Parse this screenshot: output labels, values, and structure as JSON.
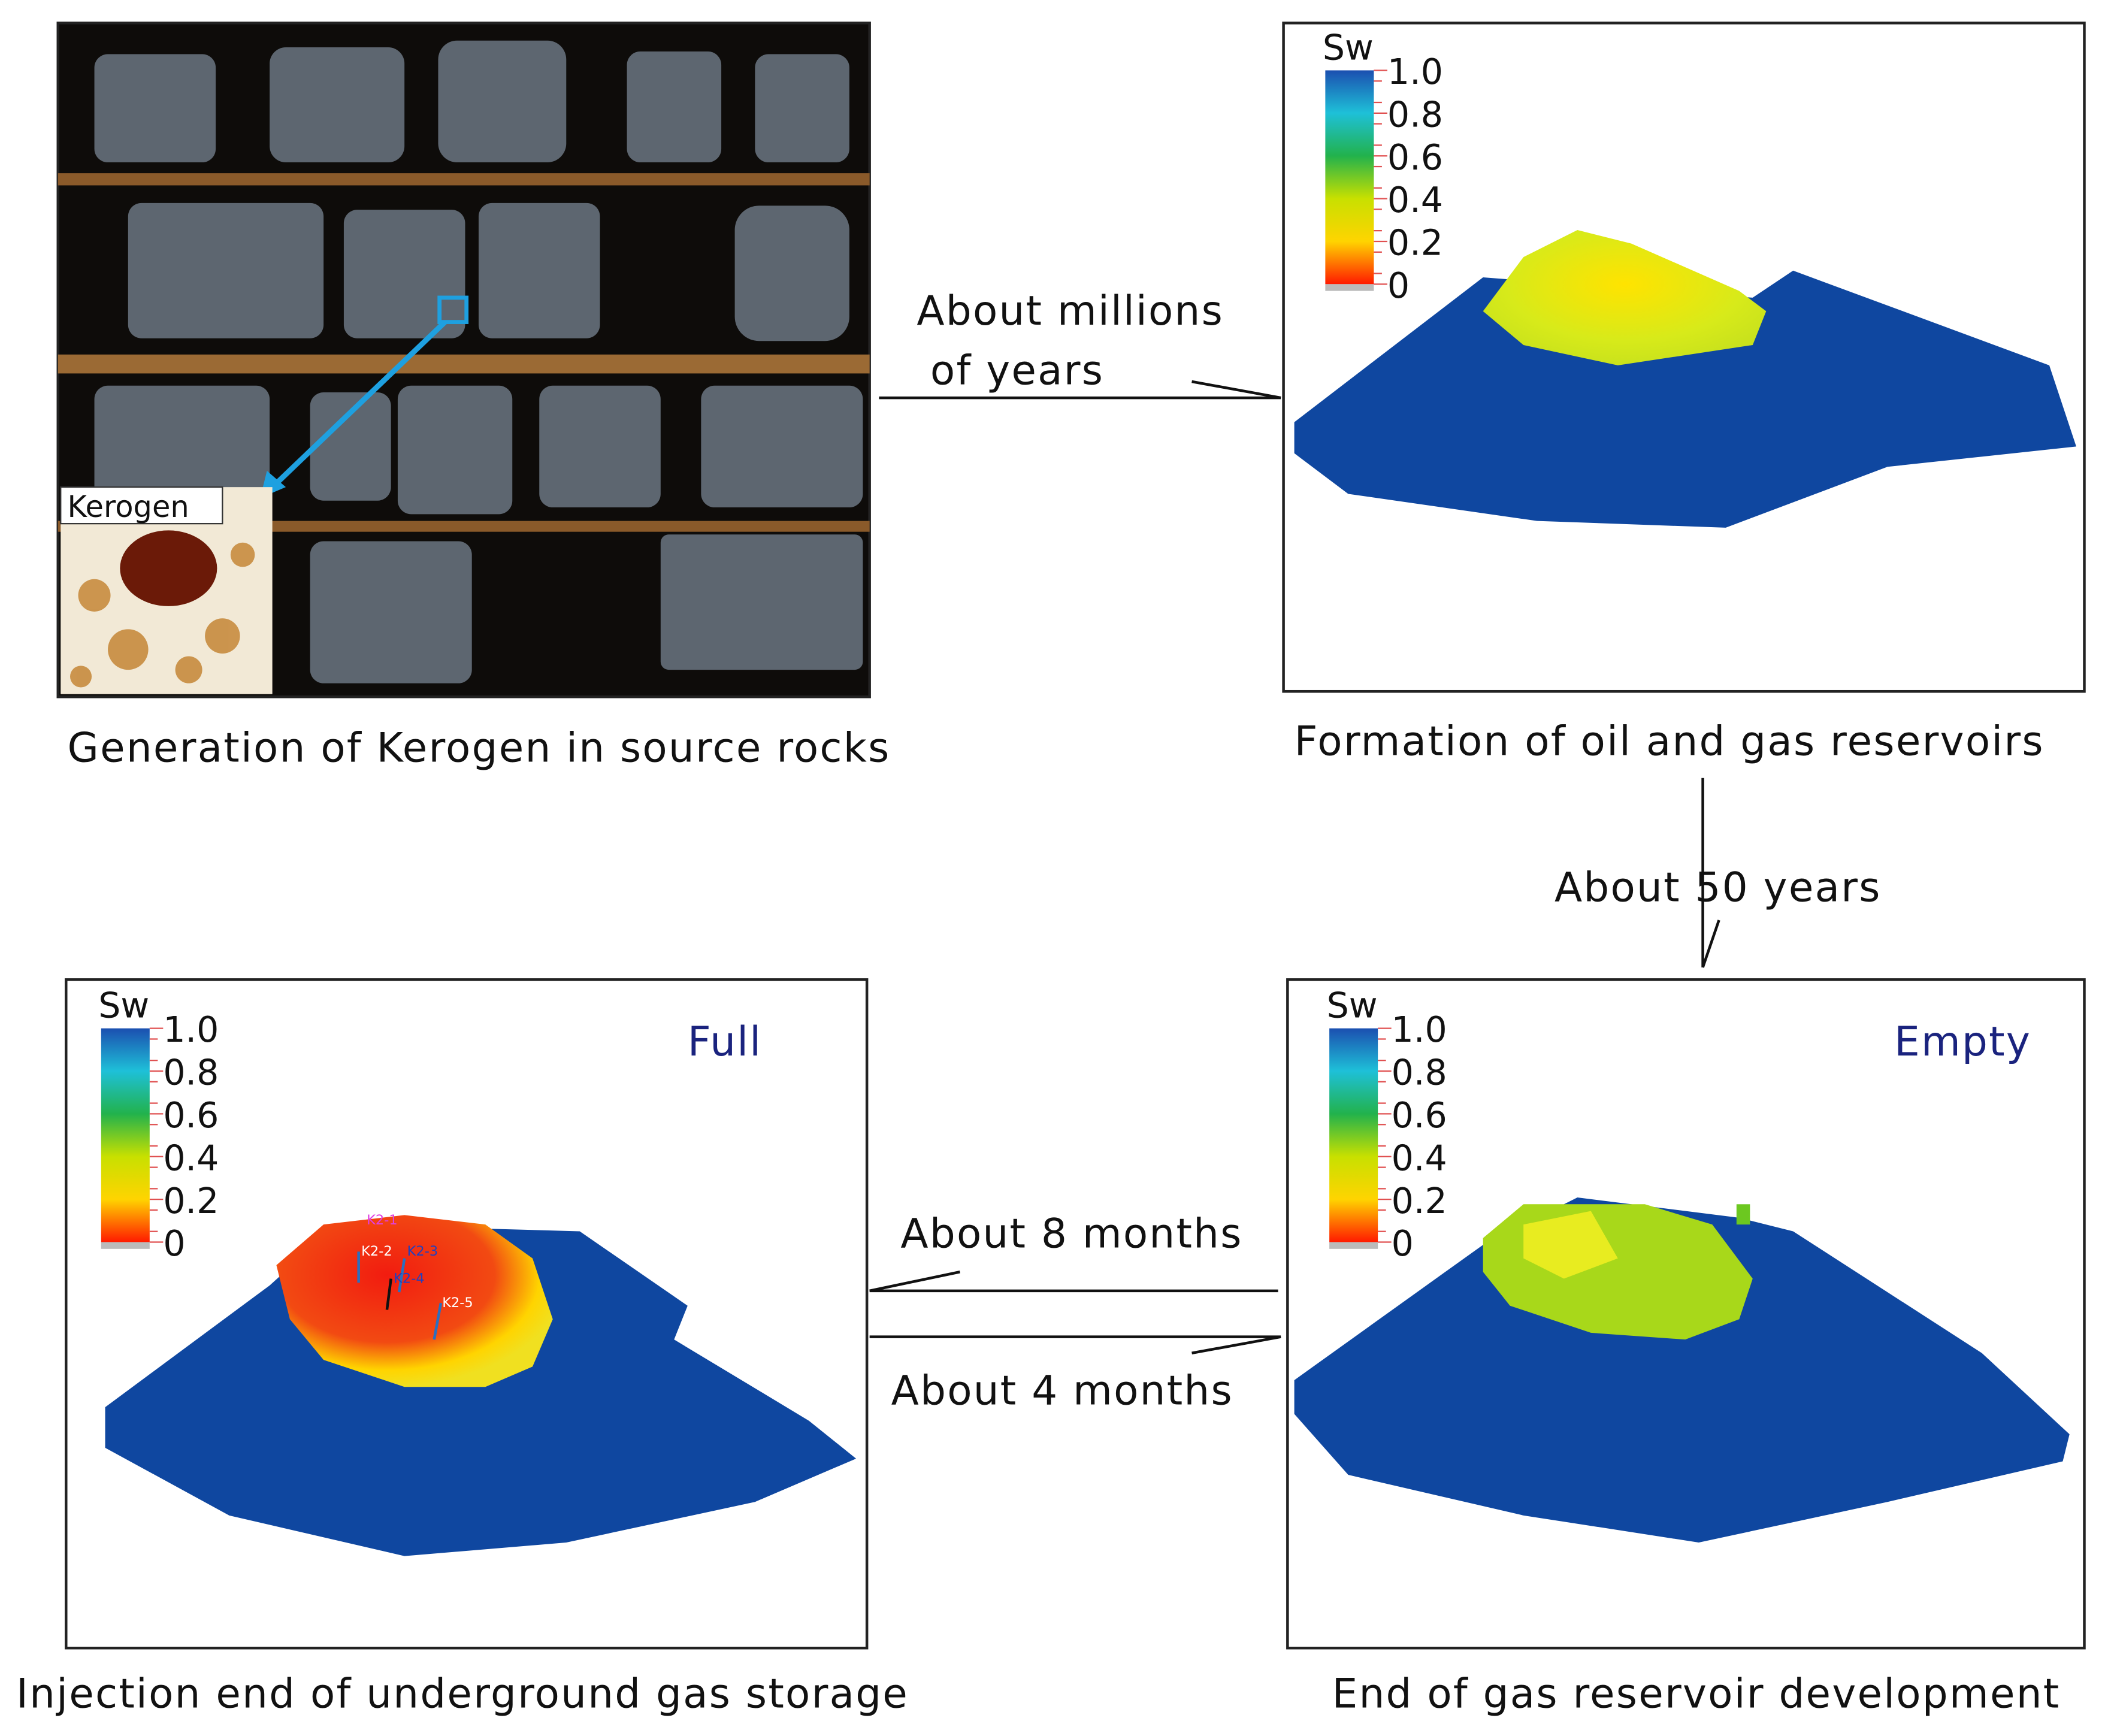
{
  "panels": [
    {
      "caption": "Generation of Kerogen in source rocks",
      "inset_label": "Kerogen"
    },
    {
      "caption": "Formation of oil and gas reservoirs",
      "legend": {
        "title": "Sw",
        "ticks": [
          "1.0",
          "0.8",
          "0.6",
          "0.4",
          "0.2",
          "0"
        ]
      }
    },
    {
      "caption": "End of gas reservoir development",
      "state": "Empty",
      "legend": {
        "title": "Sw",
        "ticks": [
          "1.0",
          "0.8",
          "0.6",
          "0.4",
          "0.2",
          "0"
        ]
      }
    },
    {
      "caption": "Injection end of underground gas storage",
      "state": "Full",
      "legend": {
        "title": "Sw",
        "ticks": [
          "1.0",
          "0.8",
          "0.6",
          "0.4",
          "0.2",
          "0"
        ]
      },
      "wells": [
        "K2-1",
        "K2-2",
        "K2-3",
        "K2-4",
        "K2-5"
      ]
    }
  ],
  "arrows": [
    {
      "label": [
        "About millions",
        "of years"
      ]
    },
    {
      "label": [
        "About 50 years"
      ]
    },
    {
      "label": [
        "About 8 months"
      ]
    },
    {
      "label": [
        "About 4 months"
      ]
    }
  ]
}
